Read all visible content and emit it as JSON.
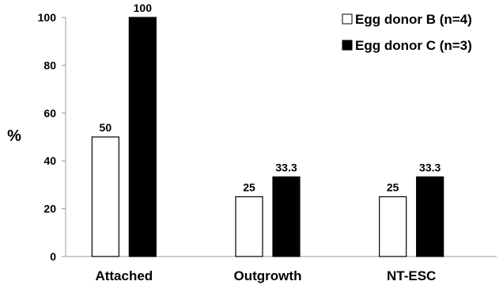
{
  "chart_data": {
    "type": "bar",
    "ylabel": "%",
    "ylim": [
      0,
      100
    ],
    "yticks": [
      0,
      20,
      40,
      60,
      80,
      100
    ],
    "categories": [
      "Attached",
      "Outgrowth",
      "NT-ESC"
    ],
    "series": [
      {
        "name": "Egg donor B (n=4)",
        "values": [
          50,
          25,
          25
        ],
        "labels": [
          "50",
          "25",
          "25"
        ],
        "fill": "#ffffff",
        "stroke": "#000000"
      },
      {
        "name": "Egg donor C (n=3)",
        "values": [
          100,
          33.3,
          33.3
        ],
        "labels": [
          "100",
          "33.3",
          "33.3"
        ],
        "fill": "#000000",
        "stroke": "#000000"
      }
    ],
    "legend_position": "top-right",
    "grid": false
  }
}
